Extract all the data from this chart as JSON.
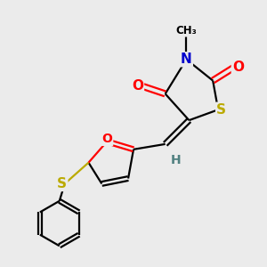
{
  "background_color": "#ebebeb",
  "bond_color": "#000000",
  "bond_width": 1.6,
  "figsize": [
    3.0,
    3.0
  ],
  "dpi": 100,
  "colors": {
    "N": "#0000cc",
    "O": "#ff0000",
    "S_thiz": "#bbaa00",
    "S_ph": "#bbaa00",
    "H": "#508080",
    "C": "#000000"
  },
  "xlim": [
    0,
    10
  ],
  "ylim": [
    0,
    10
  ]
}
